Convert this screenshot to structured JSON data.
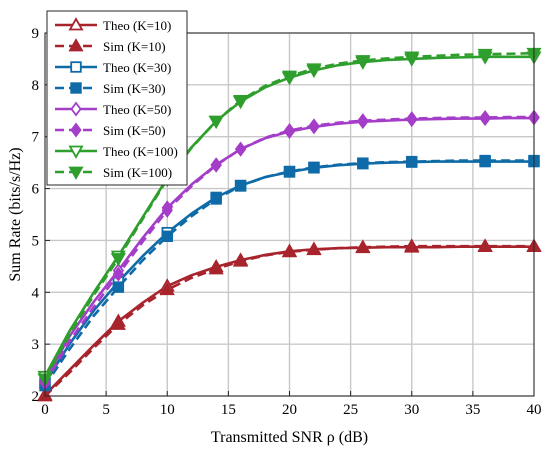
{
  "chart_data": {
    "type": "line",
    "xlabel": "Transmitted SNR ρ (dB)",
    "ylabel": "Sum Rate (bits/s/Hz)",
    "xlim": [
      0,
      40
    ],
    "ylim": [
      2,
      9
    ],
    "xticks": [
      0,
      5,
      10,
      15,
      20,
      25,
      30,
      35,
      40
    ],
    "yticks": [
      2,
      3,
      4,
      5,
      6,
      7,
      8,
      9
    ],
    "grid": true,
    "legend_position": "top-left",
    "x": [
      0,
      2,
      4,
      6,
      8,
      10,
      12,
      14,
      16,
      18,
      20,
      22,
      24,
      26,
      28,
      30,
      32,
      34,
      36,
      38,
      40
    ],
    "series": [
      {
        "name": "Theo (K=10)",
        "color": "#a8242c",
        "line": "solid",
        "marker": "triangle-up-open",
        "values": [
          2.02,
          2.5,
          2.98,
          3.44,
          3.8,
          4.12,
          4.33,
          4.49,
          4.62,
          4.72,
          4.79,
          4.83,
          4.85,
          4.86,
          4.87,
          4.87,
          4.87,
          4.88,
          4.88,
          4.88,
          4.88
        ],
        "marker_x": [
          0,
          6,
          10,
          14,
          16,
          20,
          22,
          26,
          30,
          36,
          40
        ]
      },
      {
        "name": "Sim (K=10)",
        "color": "#a8242c",
        "line": "dashed",
        "marker": "triangle-up-filled",
        "values": [
          2.0,
          2.45,
          2.93,
          3.38,
          3.75,
          4.05,
          4.28,
          4.45,
          4.6,
          4.71,
          4.78,
          4.82,
          4.85,
          4.87,
          4.88,
          4.89,
          4.89,
          4.89,
          4.89,
          4.89,
          4.89
        ],
        "marker_x": [
          0,
          6,
          10,
          14,
          16,
          20,
          22,
          26,
          30,
          36,
          40
        ]
      },
      {
        "name": "Theo (K=30)",
        "color": "#0f6aa8",
        "line": "solid",
        "marker": "square-open",
        "values": [
          2.25,
          3.0,
          3.65,
          4.2,
          4.7,
          5.15,
          5.52,
          5.83,
          6.06,
          6.22,
          6.32,
          6.4,
          6.45,
          6.48,
          6.5,
          6.51,
          6.52,
          6.52,
          6.52,
          6.52,
          6.52
        ],
        "marker_x": [
          0,
          6,
          10,
          14,
          16,
          20,
          22,
          26,
          30,
          36,
          40
        ]
      },
      {
        "name": "Sim (K=30)",
        "color": "#0f6aa8",
        "line": "dashed",
        "marker": "square-filled",
        "values": [
          2.2,
          2.9,
          3.55,
          4.1,
          4.62,
          5.08,
          5.47,
          5.8,
          6.05,
          6.22,
          6.33,
          6.41,
          6.46,
          6.49,
          6.51,
          6.52,
          6.53,
          6.54,
          6.54,
          6.54,
          6.54
        ],
        "marker_x": [
          0,
          6,
          10,
          14,
          16,
          20,
          22,
          26,
          30,
          36,
          40
        ]
      },
      {
        "name": "Theo (K=50)",
        "color": "#a43dc8",
        "line": "solid",
        "marker": "diamond-open",
        "values": [
          2.3,
          3.15,
          3.82,
          4.42,
          5.05,
          5.63,
          6.08,
          6.46,
          6.76,
          6.97,
          7.1,
          7.19,
          7.25,
          7.29,
          7.31,
          7.33,
          7.34,
          7.35,
          7.35,
          7.36,
          7.36
        ],
        "marker_x": [
          0,
          6,
          10,
          14,
          16,
          20,
          22,
          26,
          30,
          36,
          40
        ]
      },
      {
        "name": "Sim (K=50)",
        "color": "#a43dc8",
        "line": "dashed",
        "marker": "diamond-filled",
        "values": [
          2.25,
          3.05,
          3.72,
          4.35,
          4.98,
          5.58,
          6.05,
          6.45,
          6.76,
          6.98,
          7.12,
          7.21,
          7.27,
          7.31,
          7.33,
          7.35,
          7.36,
          7.37,
          7.37,
          7.38,
          7.38
        ],
        "marker_x": [
          0,
          6,
          10,
          14,
          16,
          20,
          22,
          26,
          30,
          36,
          40
        ]
      },
      {
        "name": "Theo (K=100)",
        "color": "#2e9e2c",
        "line": "solid",
        "marker": "triangle-down-open",
        "values": [
          2.38,
          3.25,
          4.0,
          4.7,
          5.45,
          6.2,
          6.8,
          7.3,
          7.68,
          7.95,
          8.14,
          8.28,
          8.38,
          8.44,
          8.48,
          8.5,
          8.52,
          8.53,
          8.54,
          8.54,
          8.54
        ],
        "marker_x": [
          0,
          6,
          10,
          14,
          16,
          20,
          22,
          26,
          30,
          36,
          40
        ]
      },
      {
        "name": "Sim (K=100)",
        "color": "#2e9e2c",
        "line": "dashed",
        "marker": "triangle-down-filled",
        "values": [
          2.33,
          3.18,
          3.95,
          4.65,
          5.42,
          6.18,
          6.79,
          7.3,
          7.7,
          7.98,
          8.17,
          8.31,
          8.41,
          8.47,
          8.51,
          8.54,
          8.56,
          8.58,
          8.59,
          8.6,
          8.61
        ],
        "marker_x": [
          0,
          6,
          10,
          14,
          16,
          20,
          22,
          26,
          30,
          36,
          40
        ]
      }
    ]
  }
}
